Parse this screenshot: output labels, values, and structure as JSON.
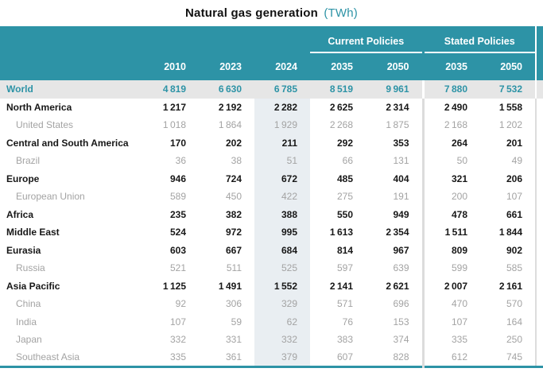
{
  "colors": {
    "accent_teal": "#2d93a6",
    "world_row_bg": "#e6e6e6",
    "highlight_column_bg": "#e9eef2",
    "region_text": "#171717",
    "subregion_text": "#a3a3a3",
    "divider_gray": "#dcdcdc"
  },
  "chart_data": {
    "type": "table",
    "title": "Natural gas generation",
    "unit_label": "(TWh)",
    "column_groups": [
      {
        "label": "",
        "columns": [
          "2010",
          "2023",
          "2024"
        ]
      },
      {
        "label": "Current Policies",
        "columns": [
          "2035",
          "2050"
        ]
      },
      {
        "label": "Stated Policies",
        "columns": [
          "2035",
          "2050"
        ]
      }
    ],
    "highlighted_column": "2024",
    "rows": [
      {
        "name": "World",
        "level": "world",
        "values": [
          4819,
          6630,
          6785,
          8519,
          9961,
          7880,
          7532
        ]
      },
      {
        "name": "North America",
        "level": "region",
        "values": [
          1217,
          2192,
          2282,
          2625,
          2314,
          2490,
          1558
        ]
      },
      {
        "name": "United States",
        "level": "subregion",
        "values": [
          1018,
          1864,
          1929,
          2268,
          1875,
          2168,
          1202
        ]
      },
      {
        "name": "Central and South America",
        "level": "region",
        "values": [
          170,
          202,
          211,
          292,
          353,
          264,
          201
        ]
      },
      {
        "name": "Brazil",
        "level": "subregion",
        "values": [
          36,
          38,
          51,
          66,
          131,
          50,
          49
        ]
      },
      {
        "name": "Europe",
        "level": "region",
        "values": [
          946,
          724,
          672,
          485,
          404,
          321,
          206
        ]
      },
      {
        "name": "European Union",
        "level": "subregion",
        "values": [
          589,
          450,
          422,
          275,
          191,
          200,
          107
        ]
      },
      {
        "name": "Africa",
        "level": "region",
        "values": [
          235,
          382,
          388,
          550,
          949,
          478,
          661
        ]
      },
      {
        "name": "Middle East",
        "level": "region",
        "values": [
          524,
          972,
          995,
          1613,
          2354,
          1511,
          1844
        ]
      },
      {
        "name": "Eurasia",
        "level": "region",
        "values": [
          603,
          667,
          684,
          814,
          967,
          809,
          902
        ]
      },
      {
        "name": "Russia",
        "level": "subregion",
        "values": [
          521,
          511,
          525,
          597,
          639,
          599,
          585
        ]
      },
      {
        "name": "Asia Pacific",
        "level": "region",
        "values": [
          1125,
          1491,
          1552,
          2141,
          2621,
          2007,
          2161
        ]
      },
      {
        "name": "China",
        "level": "subregion",
        "values": [
          92,
          306,
          329,
          571,
          696,
          470,
          570
        ]
      },
      {
        "name": "India",
        "level": "subregion",
        "values": [
          107,
          59,
          62,
          76,
          153,
          107,
          164
        ]
      },
      {
        "name": "Japan",
        "level": "subregion",
        "values": [
          332,
          331,
          332,
          383,
          374,
          335,
          250
        ]
      },
      {
        "name": "Southeast Asia",
        "level": "subregion",
        "values": [
          335,
          361,
          379,
          607,
          828,
          612,
          745
        ]
      }
    ]
  }
}
